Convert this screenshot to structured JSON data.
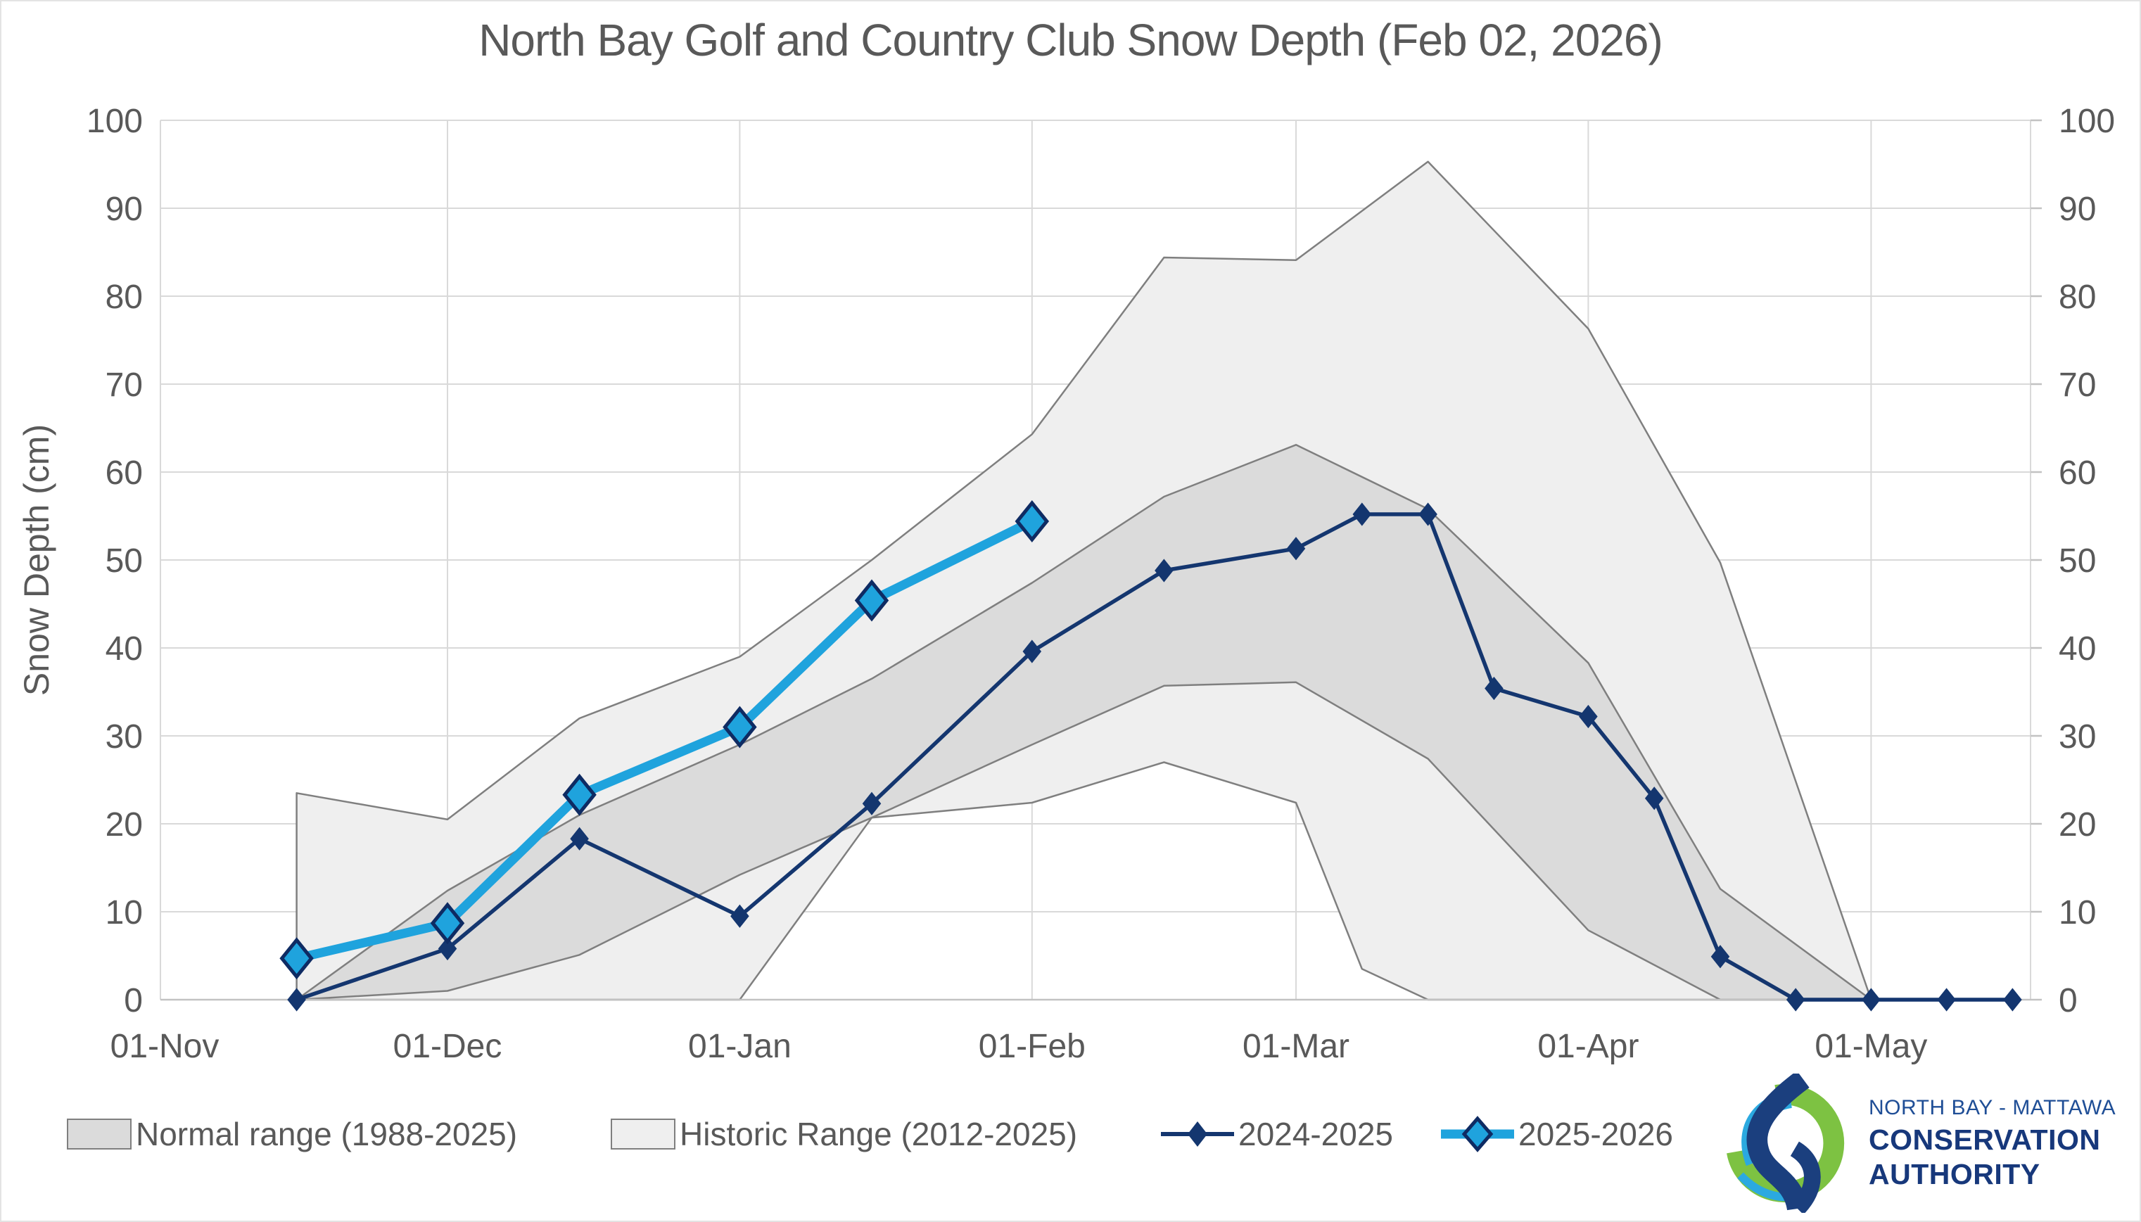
{
  "title": "North Bay Golf and Country Club Snow Depth (Feb 02, 2026)",
  "y_axis_title": "Snow Depth (cm)",
  "legend": {
    "items": [
      {
        "id": "normal-range",
        "label": "Normal range (1988-2025)",
        "swatch": "box-normal"
      },
      {
        "id": "historic-range",
        "label": "Historic Range (2012-2025)",
        "swatch": "box-historic"
      },
      {
        "id": "2024-2025",
        "label": "2024-2025",
        "swatch": "line-diamond-navy"
      },
      {
        "id": "2025-2026",
        "label": "2025-2026",
        "swatch": "line-diamond-blue"
      }
    ]
  },
  "logo": {
    "line1": "NORTH BAY - MATTAWA",
    "line2": "CONSERVATION",
    "line3": "AUTHORITY"
  },
  "colors": {
    "series_navy": "#14366F",
    "series_blue": "#1FA3DD",
    "marker_edge_navy": "#0E2B63",
    "normal_fill": "#DBDBDB",
    "historic_fill": "#EFEFEF",
    "band_stroke": "#7F7F7F",
    "grid": "#D9D9D9",
    "axis": "#C2C2C2",
    "text": "#595959",
    "logo_green": "#7DC242",
    "logo_blue": "#2BA9E0",
    "logo_navy": "#1B3F7E",
    "logo_text1": "#1F4E96",
    "logo_text2": "#17387B"
  },
  "chart_data": {
    "type": "line",
    "title": "North Bay Golf and Country Club Snow Depth (Feb 02, 2026)",
    "xlabel": "",
    "ylabel": "Snow Depth (cm)",
    "ylim": [
      0,
      100
    ],
    "y_ticks": [
      0,
      10,
      20,
      30,
      40,
      50,
      60,
      70,
      80,
      90,
      100
    ],
    "y_axis_sides": "both",
    "grid": true,
    "legend_position": "bottom",
    "x_unit": "days since Nov 1",
    "x_range": [
      0,
      198
    ],
    "x_ticks": [
      {
        "label": "01-Nov",
        "day": 0
      },
      {
        "label": "01-Dec",
        "day": 30
      },
      {
        "label": "01-Jan",
        "day": 61
      },
      {
        "label": "01-Feb",
        "day": 92
      },
      {
        "label": "01-Mar",
        "day": 120
      },
      {
        "label": "01-Apr",
        "day": 151
      },
      {
        "label": "01-May",
        "day": 181
      }
    ],
    "bands": [
      {
        "id": "historic-range",
        "name": "Historic Range (2012-2025)",
        "fill_key": "historic_fill",
        "top": [
          [
            14,
            23.5
          ],
          [
            30,
            20.5
          ],
          [
            44,
            32
          ],
          [
            61,
            39
          ],
          [
            75,
            50
          ],
          [
            92,
            64.3
          ],
          [
            106,
            84.4
          ],
          [
            120,
            84.1
          ],
          [
            134,
            95.3
          ],
          [
            151,
            76.3
          ],
          [
            165,
            49.7
          ],
          [
            181,
            0
          ]
        ],
        "bottom": [
          [
            14,
            0
          ],
          [
            61,
            0
          ],
          [
            75,
            20.7
          ],
          [
            92,
            22.4
          ],
          [
            106,
            27
          ],
          [
            120,
            22.4
          ],
          [
            127,
            3.5
          ],
          [
            134,
            0
          ],
          [
            181,
            0
          ]
        ]
      },
      {
        "id": "normal-range",
        "name": "Normal range (1988-2025)",
        "fill_key": "normal_fill",
        "top": [
          [
            14,
            0
          ],
          [
            30,
            12.4
          ],
          [
            44,
            21
          ],
          [
            61,
            29
          ],
          [
            75,
            36.5
          ],
          [
            92,
            47.4
          ],
          [
            106,
            57.2
          ],
          [
            120,
            63.1
          ],
          [
            134,
            55.8
          ],
          [
            151,
            38.3
          ],
          [
            165,
            12.6
          ],
          [
            181,
            0
          ]
        ],
        "bottom": [
          [
            14,
            0
          ],
          [
            30,
            1
          ],
          [
            44,
            5.1
          ],
          [
            61,
            14.2
          ],
          [
            75,
            20.7
          ],
          [
            92,
            29
          ],
          [
            106,
            35.7
          ],
          [
            120,
            36.1
          ],
          [
            134,
            27.4
          ],
          [
            151,
            7.9
          ],
          [
            165,
            0
          ],
          [
            181,
            0
          ]
        ]
      }
    ],
    "series": [
      {
        "id": "2024-2025",
        "name": "2024-2025",
        "color_key": "series_navy",
        "width": 5.5,
        "marker": {
          "hw": 12,
          "hh": 15,
          "fill_key": "series_navy",
          "stroke_key": "series_navy",
          "stroke_width": 2
        },
        "points": [
          [
            14,
            0
          ],
          [
            30,
            5.8
          ],
          [
            44,
            18.3
          ],
          [
            61,
            9.5
          ],
          [
            75,
            22.3
          ],
          [
            92,
            39.6
          ],
          [
            106,
            48.8
          ],
          [
            120,
            51.3
          ],
          [
            127,
            55.2
          ],
          [
            134,
            55.2
          ],
          [
            141,
            35.4
          ],
          [
            151,
            32.2
          ],
          [
            158,
            22.9
          ],
          [
            165,
            4.9
          ],
          [
            173,
            0
          ],
          [
            181,
            0
          ],
          [
            189,
            0
          ],
          [
            196,
            0
          ]
        ]
      },
      {
        "id": "2025-2026",
        "name": "2025-2026",
        "color_key": "series_blue",
        "width": 13,
        "marker": {
          "hw": 21,
          "hh": 26,
          "fill_key": "series_blue",
          "stroke_key": "marker_edge_navy",
          "stroke_width": 5
        },
        "points": [
          [
            14,
            4.7
          ],
          [
            30,
            8.7
          ],
          [
            44,
            23.3
          ],
          [
            61,
            31
          ],
          [
            75,
            45.4
          ],
          [
            92,
            54.4
          ]
        ]
      }
    ]
  }
}
